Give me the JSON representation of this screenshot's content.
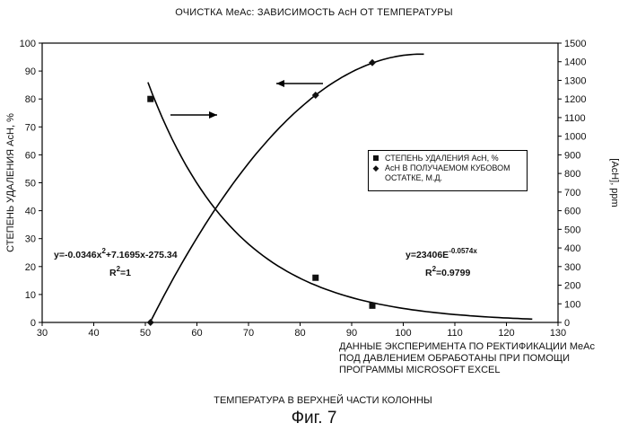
{
  "title": "ОЧИСТКА MeAc: ЗАВИСИМОСТЬ AcH ОТ ТЕМПЕРАТУРЫ",
  "note_lines": [
    "ДАННЫЕ ЭКСПЕРИМЕНТА ПО РЕКТИФИКАЦИИ MeAc",
    "ПОД ДАВЛЕНИЕМ ОБРАБОТАНЫ ПРИ ПОМОЩИ",
    "ПРОГРАММЫ MICROSOFT EXCEL"
  ],
  "xlabel": "ТЕМПЕРАТУРА В ВЕРХНЕЙ ЧАСТИ КОЛОННЫ",
  "figure_caption": "Фиг. 7",
  "chart_data": {
    "type": "scatter",
    "title": "ОЧИСТКА MeAc: ЗАВИСИМОСТЬ AcH ОТ ТЕМПЕРАТУРЫ",
    "xlabel": "ТЕМПЕРАТУРА В ВЕРХНЕЙ ЧАСТИ КОЛОННЫ",
    "ylabel": "СТЕПЕНЬ УДАЛЕНИЯ AcH, %",
    "y2label": "[AcH], ppm",
    "xlim": [
      30,
      130
    ],
    "ylim": [
      0,
      100
    ],
    "y2lim": [
      0,
      1500
    ],
    "x_ticks": [
      30,
      40,
      50,
      60,
      70,
      80,
      90,
      100,
      110,
      120,
      130
    ],
    "y_ticks": [
      0,
      10,
      20,
      30,
      40,
      50,
      60,
      70,
      80,
      90,
      100
    ],
    "y2_ticks": [
      0,
      100,
      200,
      300,
      400,
      500,
      600,
      700,
      800,
      900,
      1000,
      1100,
      1200,
      1300,
      1400,
      1500
    ],
    "grid": false,
    "legend_position": "right",
    "series": [
      {
        "name": "СТЕПЕНЬ УДАЛЕНИЯ AcH, %",
        "axis": "left",
        "marker": "square",
        "points": [
          [
            51,
            80
          ],
          [
            83,
            16
          ],
          [
            94,
            6
          ]
        ],
        "trendline": {
          "type": "poly2",
          "a": -0.0346,
          "b": 7.1695,
          "c": -275.34,
          "x_range": [
            51,
            104
          ]
        },
        "equation": "y=-0.0346x²+7.1695x-275.34",
        "r2": "R²=1"
      },
      {
        "name": "AcH В ПОЛУЧАЕМОМ КУБОВОМ ОСТАТКЕ, М.Д.",
        "axis": "right",
        "marker": "diamond",
        "points": [
          [
            51,
            0
          ],
          [
            83,
            1220
          ],
          [
            94,
            1395
          ]
        ],
        "trendline": {
          "type": "exp",
          "A": 23406,
          "k": -0.0574,
          "x_range": [
            50.5,
            125
          ]
        },
        "equation": "y=23406E⁻⁰·⁰⁵⁷⁴ˣ",
        "r2": "R²=0.9799"
      }
    ],
    "annotations": [
      {
        "text": "y=-0.0346x",
        "sup": "2",
        "tail": "+7.1695x-275.34"
      },
      {
        "text": "R",
        "sup": "2",
        "tail": "=1"
      },
      {
        "text": "y=23406E",
        "sup": "-0.0574x",
        "tail": ""
      },
      {
        "text": "R",
        "sup": "2",
        "tail": "=0.9799"
      }
    ]
  }
}
